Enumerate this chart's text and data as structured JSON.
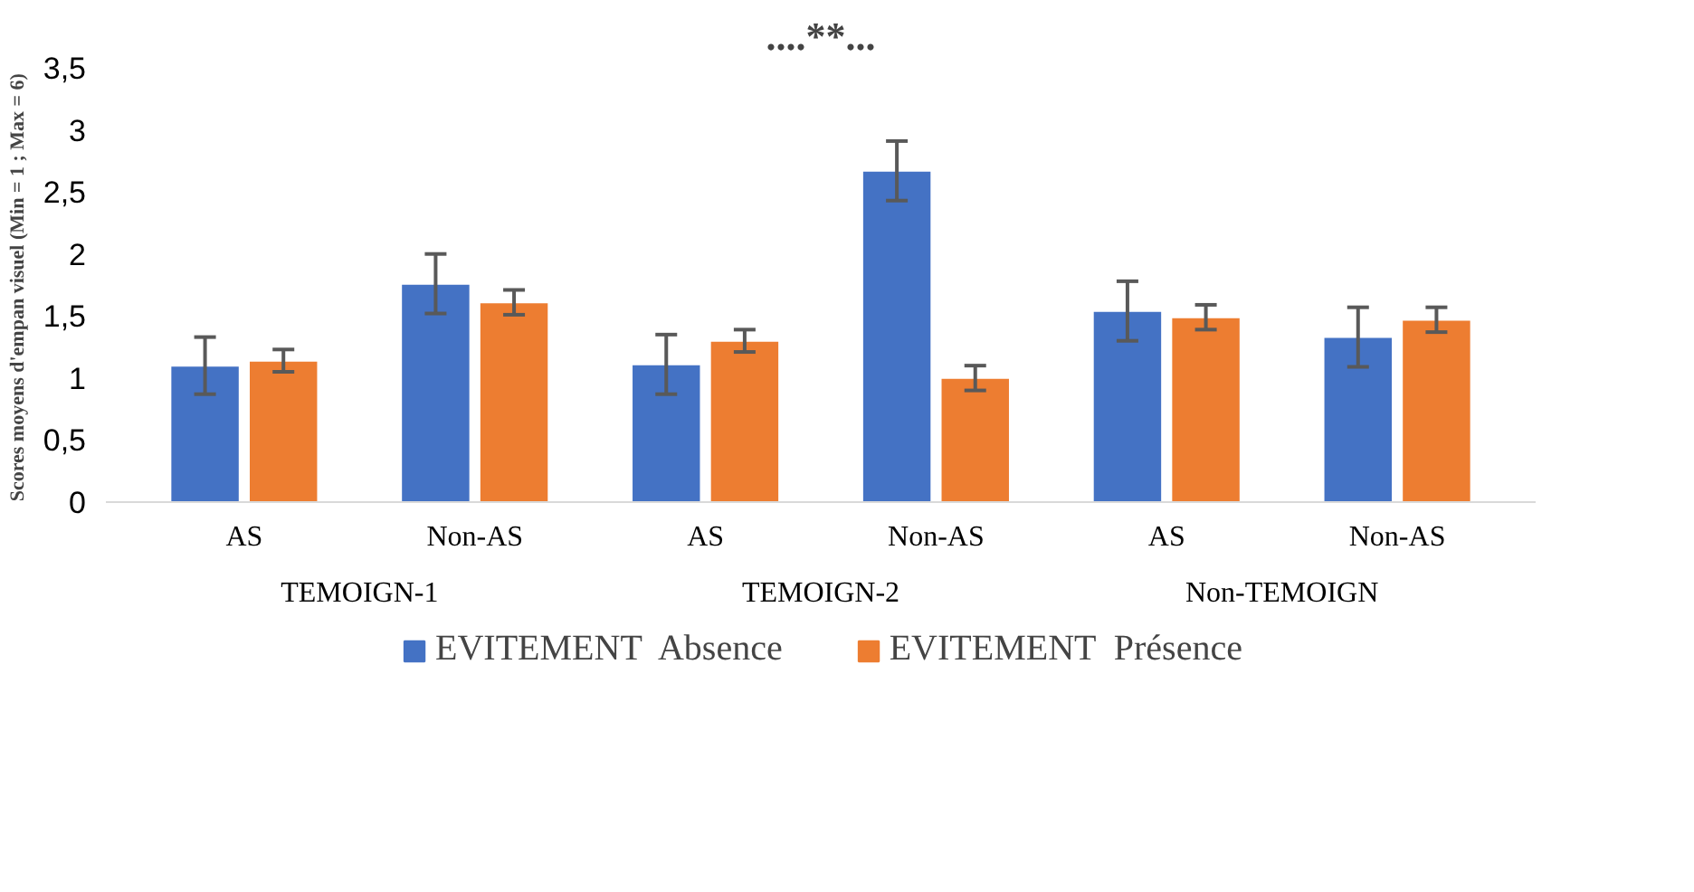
{
  "chart_data": {
    "type": "bar",
    "title": "....**...",
    "ylabel": "Scores moyens d'empan visuel (Min = 1 ; Max  = 6)",
    "categories": [
      "AS",
      "Non-AS",
      "AS",
      "Non-AS",
      "AS",
      "Non-AS"
    ],
    "annotations": [
      "TEMOIGN-1",
      "TEMOIGN-2",
      "Non-TEMOIGN"
    ],
    "series": [
      {
        "name": "EVITEMENT  Absence",
        "color": "#4472c4",
        "values": [
          1.1,
          1.76,
          1.11,
          2.67,
          1.54,
          1.33
        ],
        "errors": [
          0.23,
          0.24,
          0.24,
          0.24,
          0.24,
          0.24
        ]
      },
      {
        "name": "EVITEMENT  Présence",
        "color": "#ed7d31",
        "values": [
          1.14,
          1.61,
          1.3,
          1.0,
          1.49,
          1.47
        ],
        "errors": [
          0.09,
          0.1,
          0.09,
          0.1,
          0.1,
          0.1
        ]
      }
    ],
    "ylim": [
      0,
      3.5
    ],
    "yticks": [
      0,
      {
        "value": 0.5,
        "label": "0,5"
      },
      1,
      {
        "value": 1.5,
        "label": "1,5"
      },
      2,
      {
        "value": 2.5,
        "label": "2,5"
      },
      3,
      {
        "value": 3.5,
        "label": "3,5"
      }
    ],
    "grid": false,
    "legend": "bottom"
  }
}
